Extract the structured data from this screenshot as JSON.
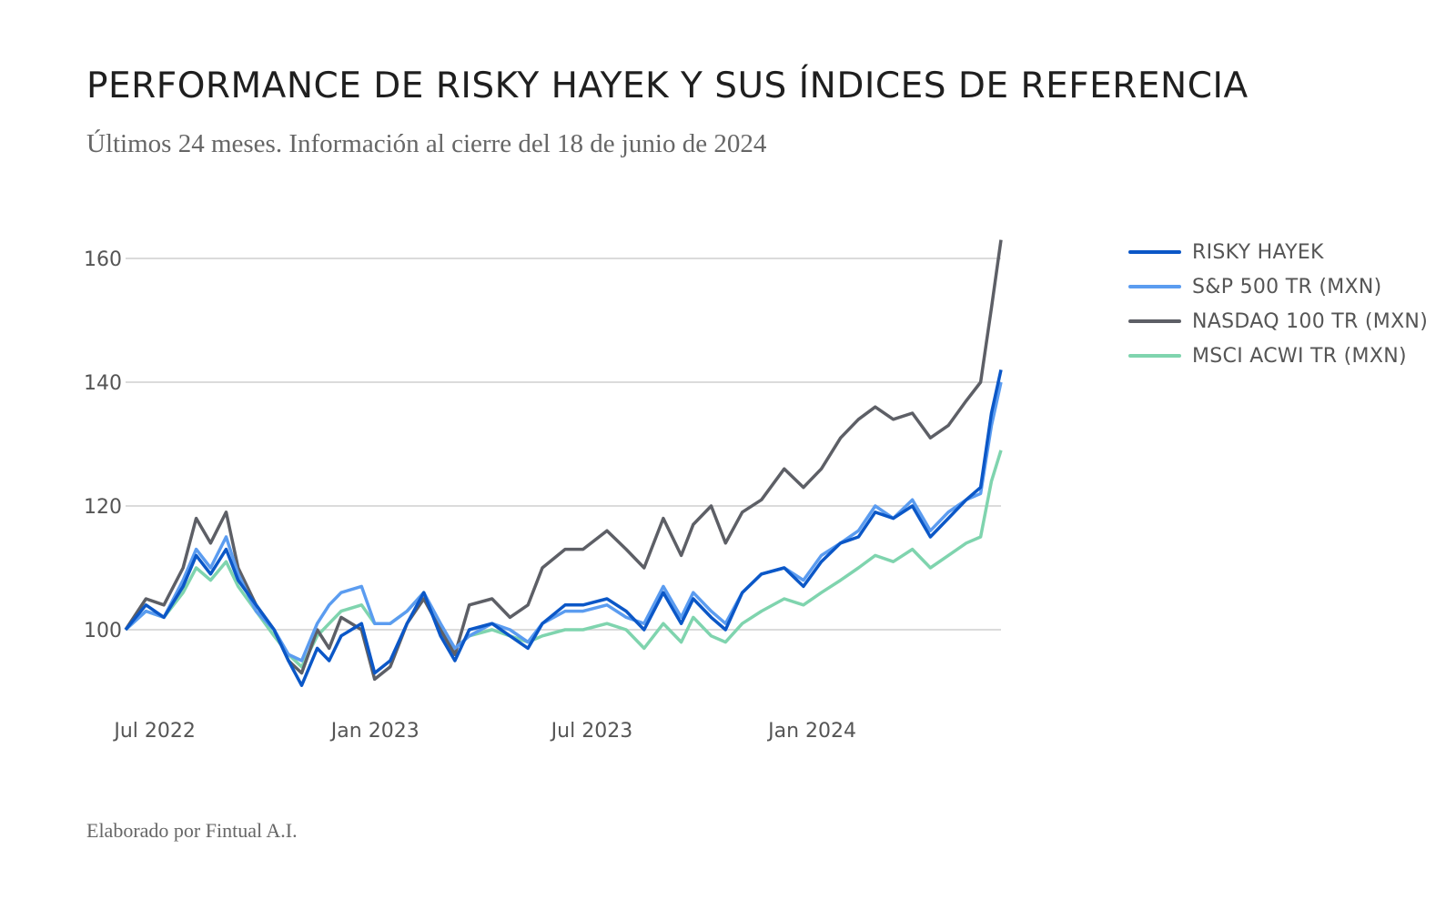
{
  "title": "PERFORMANCE DE RISKY HAYEK Y SUS ÍNDICES DE REFERENCIA",
  "subtitle": "Últimos 24 meses. Información al cierre del 18 de junio de 2024",
  "footer": "Elaborado por Fintual A.I.",
  "legend": [
    {
      "label": "RISKY HAYEK",
      "color": "#0b57c7"
    },
    {
      "label": "S&P 500 TR (MXN)",
      "color": "#5b9cf0"
    },
    {
      "label": "NASDAQ 100 TR (MXN)",
      "color": "#5d5f66"
    },
    {
      "label": "MSCI ACWI TR (MXN)",
      "color": "#7fd4ae"
    }
  ],
  "chart_data": {
    "type": "line",
    "x_start": "2022-06-18",
    "x_end": "2024-06-18",
    "xticks": [
      {
        "date": "2022-07-01",
        "label": "Jul 2022"
      },
      {
        "date": "2023-01-01",
        "label": "Jan 2023"
      },
      {
        "date": "2023-07-01",
        "label": "Jul 2023"
      },
      {
        "date": "2024-01-01",
        "label": "Jan 2024"
      }
    ],
    "yticks": [
      100,
      120,
      140,
      160
    ],
    "ylim": [
      90,
      165
    ],
    "grid": "horizontal",
    "legend_position": "right",
    "series": [
      {
        "name": "RISKY HAYEK",
        "color": "#0b57c7",
        "points": [
          [
            "2022-06-18",
            100
          ],
          [
            "2022-07-05",
            104
          ],
          [
            "2022-07-20",
            102
          ],
          [
            "2022-08-05",
            107
          ],
          [
            "2022-08-16",
            112
          ],
          [
            "2022-08-28",
            109
          ],
          [
            "2022-09-10",
            113
          ],
          [
            "2022-09-20",
            108
          ],
          [
            "2022-10-05",
            104
          ],
          [
            "2022-10-20",
            100
          ],
          [
            "2022-11-01",
            95
          ],
          [
            "2022-11-12",
            91
          ],
          [
            "2022-11-25",
            97
          ],
          [
            "2022-12-05",
            95
          ],
          [
            "2022-12-15",
            99
          ],
          [
            "2023-01-01",
            101
          ],
          [
            "2023-01-12",
            93
          ],
          [
            "2023-01-25",
            95
          ],
          [
            "2023-02-08",
            101
          ],
          [
            "2023-02-22",
            106
          ],
          [
            "2023-03-08",
            99
          ],
          [
            "2023-03-20",
            95
          ],
          [
            "2023-04-01",
            100
          ],
          [
            "2023-04-20",
            101
          ],
          [
            "2023-05-05",
            99
          ],
          [
            "2023-05-20",
            97
          ],
          [
            "2023-06-01",
            101
          ],
          [
            "2023-06-20",
            104
          ],
          [
            "2023-07-05",
            104
          ],
          [
            "2023-07-25",
            105
          ],
          [
            "2023-08-10",
            103
          ],
          [
            "2023-08-25",
            100
          ],
          [
            "2023-09-10",
            106
          ],
          [
            "2023-09-25",
            101
          ],
          [
            "2023-10-05",
            105
          ],
          [
            "2023-10-20",
            102
          ],
          [
            "2023-11-01",
            100
          ],
          [
            "2023-11-15",
            106
          ],
          [
            "2023-12-01",
            109
          ],
          [
            "2023-12-20",
            110
          ],
          [
            "2024-01-05",
            107
          ],
          [
            "2024-01-20",
            111
          ],
          [
            "2024-02-05",
            114
          ],
          [
            "2024-02-20",
            115
          ],
          [
            "2024-03-05",
            119
          ],
          [
            "2024-03-20",
            118
          ],
          [
            "2024-04-05",
            120
          ],
          [
            "2024-04-20",
            115
          ],
          [
            "2024-05-05",
            118
          ],
          [
            "2024-05-20",
            121
          ],
          [
            "2024-06-01",
            123
          ],
          [
            "2024-06-10",
            135
          ],
          [
            "2024-06-18",
            142
          ]
        ]
      },
      {
        "name": "S&P 500 TR (MXN)",
        "color": "#5b9cf0",
        "points": [
          [
            "2022-06-18",
            100
          ],
          [
            "2022-07-05",
            103
          ],
          [
            "2022-07-20",
            102
          ],
          [
            "2022-08-05",
            108
          ],
          [
            "2022-08-16",
            113
          ],
          [
            "2022-08-28",
            110
          ],
          [
            "2022-09-10",
            115
          ],
          [
            "2022-09-20",
            109
          ],
          [
            "2022-10-05",
            103
          ],
          [
            "2022-10-20",
            100
          ],
          [
            "2022-11-01",
            96
          ],
          [
            "2022-11-12",
            95
          ],
          [
            "2022-11-25",
            101
          ],
          [
            "2022-12-05",
            104
          ],
          [
            "2022-12-15",
            106
          ],
          [
            "2023-01-01",
            107
          ],
          [
            "2023-01-12",
            101
          ],
          [
            "2023-01-25",
            101
          ],
          [
            "2023-02-08",
            103
          ],
          [
            "2023-02-22",
            106
          ],
          [
            "2023-03-08",
            101
          ],
          [
            "2023-03-20",
            97
          ],
          [
            "2023-04-01",
            99
          ],
          [
            "2023-04-20",
            101
          ],
          [
            "2023-05-05",
            100
          ],
          [
            "2023-05-20",
            98
          ],
          [
            "2023-06-01",
            101
          ],
          [
            "2023-06-20",
            103
          ],
          [
            "2023-07-05",
            103
          ],
          [
            "2023-07-25",
            104
          ],
          [
            "2023-08-10",
            102
          ],
          [
            "2023-08-25",
            101
          ],
          [
            "2023-09-10",
            107
          ],
          [
            "2023-09-25",
            102
          ],
          [
            "2023-10-05",
            106
          ],
          [
            "2023-10-20",
            103
          ],
          [
            "2023-11-01",
            101
          ],
          [
            "2023-11-15",
            106
          ],
          [
            "2023-12-01",
            109
          ],
          [
            "2023-12-20",
            110
          ],
          [
            "2024-01-05",
            108
          ],
          [
            "2024-01-20",
            112
          ],
          [
            "2024-02-05",
            114
          ],
          [
            "2024-02-20",
            116
          ],
          [
            "2024-03-05",
            120
          ],
          [
            "2024-03-20",
            118
          ],
          [
            "2024-04-05",
            121
          ],
          [
            "2024-04-20",
            116
          ],
          [
            "2024-05-05",
            119
          ],
          [
            "2024-05-20",
            121
          ],
          [
            "2024-06-01",
            122
          ],
          [
            "2024-06-10",
            133
          ],
          [
            "2024-06-18",
            140
          ]
        ]
      },
      {
        "name": "NASDAQ 100 TR (MXN)",
        "color": "#5d5f66",
        "points": [
          [
            "2022-06-18",
            100
          ],
          [
            "2022-07-05",
            105
          ],
          [
            "2022-07-20",
            104
          ],
          [
            "2022-08-05",
            110
          ],
          [
            "2022-08-16",
            118
          ],
          [
            "2022-08-28",
            114
          ],
          [
            "2022-09-10",
            119
          ],
          [
            "2022-09-20",
            110
          ],
          [
            "2022-10-05",
            104
          ],
          [
            "2022-10-20",
            100
          ],
          [
            "2022-11-01",
            95
          ],
          [
            "2022-11-12",
            93
          ],
          [
            "2022-11-25",
            100
          ],
          [
            "2022-12-05",
            97
          ],
          [
            "2022-12-15",
            102
          ],
          [
            "2023-01-01",
            100
          ],
          [
            "2023-01-12",
            92
          ],
          [
            "2023-01-25",
            94
          ],
          [
            "2023-02-08",
            101
          ],
          [
            "2023-02-22",
            105
          ],
          [
            "2023-03-08",
            100
          ],
          [
            "2023-03-20",
            96
          ],
          [
            "2023-04-01",
            104
          ],
          [
            "2023-04-20",
            105
          ],
          [
            "2023-05-05",
            102
          ],
          [
            "2023-05-20",
            104
          ],
          [
            "2023-06-01",
            110
          ],
          [
            "2023-06-20",
            113
          ],
          [
            "2023-07-05",
            113
          ],
          [
            "2023-07-25",
            116
          ],
          [
            "2023-08-10",
            113
          ],
          [
            "2023-08-25",
            110
          ],
          [
            "2023-09-10",
            118
          ],
          [
            "2023-09-25",
            112
          ],
          [
            "2023-10-05",
            117
          ],
          [
            "2023-10-20",
            120
          ],
          [
            "2023-11-01",
            114
          ],
          [
            "2023-11-15",
            119
          ],
          [
            "2023-12-01",
            121
          ],
          [
            "2023-12-20",
            126
          ],
          [
            "2024-01-05",
            123
          ],
          [
            "2024-01-20",
            126
          ],
          [
            "2024-02-05",
            131
          ],
          [
            "2024-02-20",
            134
          ],
          [
            "2024-03-05",
            136
          ],
          [
            "2024-03-20",
            134
          ],
          [
            "2024-04-05",
            135
          ],
          [
            "2024-04-20",
            131
          ],
          [
            "2024-05-05",
            133
          ],
          [
            "2024-05-20",
            137
          ],
          [
            "2024-06-01",
            140
          ],
          [
            "2024-06-10",
            152
          ],
          [
            "2024-06-18",
            163
          ]
        ]
      },
      {
        "name": "MSCI ACWI TR (MXN)",
        "color": "#7fd4ae",
        "points": [
          [
            "2022-06-18",
            100
          ],
          [
            "2022-07-05",
            103
          ],
          [
            "2022-07-20",
            102
          ],
          [
            "2022-08-05",
            106
          ],
          [
            "2022-08-16",
            110
          ],
          [
            "2022-08-28",
            108
          ],
          [
            "2022-09-10",
            111
          ],
          [
            "2022-09-20",
            107
          ],
          [
            "2022-10-05",
            103
          ],
          [
            "2022-10-20",
            99
          ],
          [
            "2022-11-01",
            96
          ],
          [
            "2022-11-12",
            94
          ],
          [
            "2022-11-25",
            99
          ],
          [
            "2022-12-05",
            101
          ],
          [
            "2022-12-15",
            103
          ],
          [
            "2023-01-01",
            104
          ],
          [
            "2023-01-12",
            101
          ],
          [
            "2023-01-25",
            101
          ],
          [
            "2023-02-08",
            103
          ],
          [
            "2023-02-22",
            106
          ],
          [
            "2023-03-08",
            100
          ],
          [
            "2023-03-20",
            97
          ],
          [
            "2023-04-01",
            99
          ],
          [
            "2023-04-20",
            100
          ],
          [
            "2023-05-05",
            99
          ],
          [
            "2023-05-20",
            98
          ],
          [
            "2023-06-01",
            99
          ],
          [
            "2023-06-20",
            100
          ],
          [
            "2023-07-05",
            100
          ],
          [
            "2023-07-25",
            101
          ],
          [
            "2023-08-10",
            100
          ],
          [
            "2023-08-25",
            97
          ],
          [
            "2023-09-10",
            101
          ],
          [
            "2023-09-25",
            98
          ],
          [
            "2023-10-05",
            102
          ],
          [
            "2023-10-20",
            99
          ],
          [
            "2023-11-01",
            98
          ],
          [
            "2023-11-15",
            101
          ],
          [
            "2023-12-01",
            103
          ],
          [
            "2023-12-20",
            105
          ],
          [
            "2024-01-05",
            104
          ],
          [
            "2024-01-20",
            106
          ],
          [
            "2024-02-05",
            108
          ],
          [
            "2024-02-20",
            110
          ],
          [
            "2024-03-05",
            112
          ],
          [
            "2024-03-20",
            111
          ],
          [
            "2024-04-05",
            113
          ],
          [
            "2024-04-20",
            110
          ],
          [
            "2024-05-05",
            112
          ],
          [
            "2024-05-20",
            114
          ],
          [
            "2024-06-01",
            115
          ],
          [
            "2024-06-10",
            124
          ],
          [
            "2024-06-18",
            129
          ]
        ]
      }
    ]
  }
}
